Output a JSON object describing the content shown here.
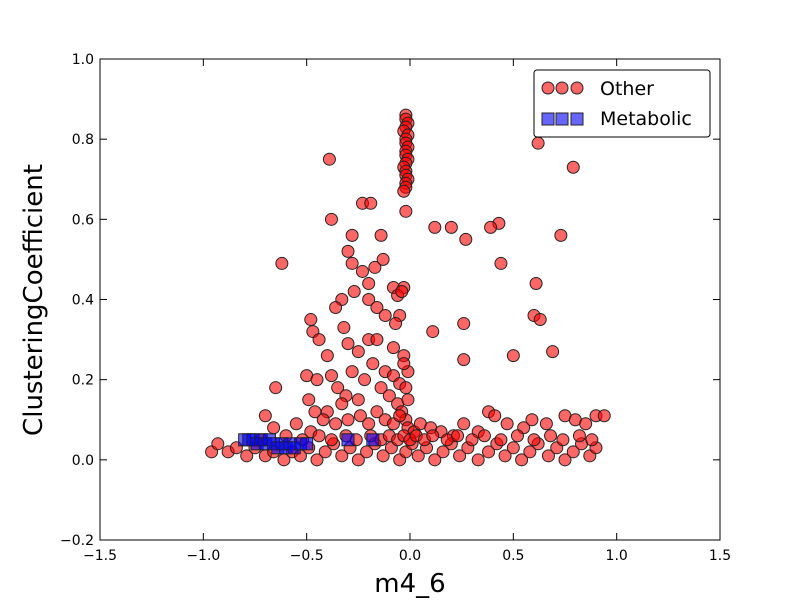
{
  "chart_data": {
    "type": "scatter",
    "xlabel": "m4_6",
    "ylabel": "ClusteringCoefficient",
    "xlim": [
      -1.5,
      1.5
    ],
    "ylim": [
      -0.2,
      1.0
    ],
    "xticks": [
      "−1.5",
      "−1.0",
      "−0.5",
      "0.0",
      "0.5",
      "1.0",
      "1.5"
    ],
    "yticks": [
      "−0.2",
      "0.0",
      "0.2",
      "0.4",
      "0.6",
      "0.8",
      "1.0"
    ],
    "grid": false,
    "legend_position": "top-right",
    "series": [
      {
        "name": "Other",
        "marker": "circle",
        "color": "#ff0000",
        "points": [
          [
            -0.02,
            0.86
          ],
          [
            -0.02,
            0.85
          ],
          [
            -0.01,
            0.84
          ],
          [
            -0.02,
            0.83
          ],
          [
            -0.03,
            0.82
          ],
          [
            -0.01,
            0.81
          ],
          [
            -0.02,
            0.8
          ],
          [
            -0.02,
            0.79
          ],
          [
            -0.01,
            0.78
          ],
          [
            -0.02,
            0.77
          ],
          [
            -0.02,
            0.76
          ],
          [
            -0.01,
            0.75
          ],
          [
            -0.02,
            0.74
          ],
          [
            -0.03,
            0.73
          ],
          [
            -0.02,
            0.72
          ],
          [
            -0.02,
            0.71
          ],
          [
            -0.01,
            0.7
          ],
          [
            -0.02,
            0.69
          ],
          [
            -0.02,
            0.68
          ],
          [
            -0.03,
            0.67
          ],
          [
            -0.02,
            0.62
          ],
          [
            -0.39,
            0.75
          ],
          [
            0.62,
            0.79
          ],
          [
            0.79,
            0.73
          ],
          [
            -0.38,
            0.6
          ],
          [
            -0.23,
            0.64
          ],
          [
            -0.19,
            0.64
          ],
          [
            -0.28,
            0.56
          ],
          [
            -0.14,
            0.56
          ],
          [
            0.12,
            0.58
          ],
          [
            0.2,
            0.58
          ],
          [
            0.27,
            0.55
          ],
          [
            0.43,
            0.59
          ],
          [
            0.39,
            0.58
          ],
          [
            0.73,
            0.56
          ],
          [
            -0.62,
            0.49
          ],
          [
            -0.3,
            0.52
          ],
          [
            -0.28,
            0.49
          ],
          [
            -0.23,
            0.47
          ],
          [
            -0.17,
            0.48
          ],
          [
            -0.13,
            0.5
          ],
          [
            0.44,
            0.49
          ],
          [
            0.61,
            0.44
          ],
          [
            -0.2,
            0.44
          ],
          [
            -0.08,
            0.43
          ],
          [
            -0.03,
            0.43
          ],
          [
            -0.06,
            0.41
          ],
          [
            -0.04,
            0.42
          ],
          [
            -0.27,
            0.42
          ],
          [
            -0.33,
            0.4
          ],
          [
            -0.2,
            0.4
          ],
          [
            -0.16,
            0.38
          ],
          [
            -0.36,
            0.38
          ],
          [
            -0.12,
            0.36
          ],
          [
            -0.05,
            0.36
          ],
          [
            -0.07,
            0.34
          ],
          [
            0.6,
            0.36
          ],
          [
            0.63,
            0.35
          ],
          [
            0.26,
            0.34
          ],
          [
            0.11,
            0.32
          ],
          [
            -0.48,
            0.35
          ],
          [
            -0.47,
            0.32
          ],
          [
            -0.32,
            0.33
          ],
          [
            -0.3,
            0.29
          ],
          [
            -0.2,
            0.3
          ],
          [
            -0.25,
            0.27
          ],
          [
            -0.44,
            0.3
          ],
          [
            -0.4,
            0.26
          ],
          [
            0.26,
            0.25
          ],
          [
            0.5,
            0.26
          ],
          [
            0.69,
            0.27
          ],
          [
            -0.16,
            0.3
          ],
          [
            -0.08,
            0.28
          ],
          [
            -0.03,
            0.26
          ],
          [
            -0.65,
            0.18
          ],
          [
            -0.5,
            0.21
          ],
          [
            -0.45,
            0.2
          ],
          [
            -0.38,
            0.21
          ],
          [
            -0.35,
            0.18
          ],
          [
            -0.31,
            0.16
          ],
          [
            -0.28,
            0.22
          ],
          [
            -0.22,
            0.2
          ],
          [
            -0.18,
            0.24
          ],
          [
            -0.12,
            0.22
          ],
          [
            -0.08,
            0.21
          ],
          [
            -0.05,
            0.19
          ],
          [
            -0.02,
            0.18
          ],
          [
            -0.01,
            0.22
          ],
          [
            -0.03,
            0.24
          ],
          [
            -0.14,
            0.18
          ],
          [
            -0.25,
            0.15
          ],
          [
            -0.33,
            0.14
          ],
          [
            -0.4,
            0.12
          ],
          [
            -0.49,
            0.15
          ],
          [
            -0.46,
            0.12
          ],
          [
            -0.1,
            0.16
          ],
          [
            -0.06,
            0.14
          ],
          [
            -0.01,
            0.15
          ],
          [
            -0.04,
            0.12
          ],
          [
            -0.02,
            0.1
          ],
          [
            -0.7,
            0.11
          ],
          [
            -0.66,
            0.08
          ],
          [
            -0.55,
            0.09
          ],
          [
            -0.48,
            0.07
          ],
          [
            -0.42,
            0.1
          ],
          [
            -0.36,
            0.09
          ],
          [
            -0.3,
            0.1
          ],
          [
            -0.24,
            0.11
          ],
          [
            -0.2,
            0.09
          ],
          [
            -0.16,
            0.12
          ],
          [
            -0.12,
            0.1
          ],
          [
            -0.08,
            0.09
          ],
          [
            -0.05,
            0.11
          ],
          [
            -0.01,
            0.08
          ],
          [
            0.02,
            0.07
          ],
          [
            0.05,
            0.09
          ],
          [
            0.1,
            0.08
          ],
          [
            0.15,
            0.07
          ],
          [
            0.21,
            0.06
          ],
          [
            0.26,
            0.09
          ],
          [
            0.33,
            0.07
          ],
          [
            0.38,
            0.12
          ],
          [
            0.41,
            0.11
          ],
          [
            0.47,
            0.09
          ],
          [
            0.55,
            0.08
          ],
          [
            0.59,
            0.1
          ],
          [
            0.66,
            0.09
          ],
          [
            0.75,
            0.11
          ],
          [
            0.8,
            0.1
          ],
          [
            0.85,
            0.09
          ],
          [
            0.9,
            0.11
          ],
          [
            0.94,
            0.11
          ],
          [
            -0.96,
            0.02
          ],
          [
            -0.93,
            0.04
          ],
          [
            -0.88,
            0.02
          ],
          [
            -0.84,
            0.03
          ],
          [
            -0.79,
            0.01
          ],
          [
            -0.75,
            0.03
          ],
          [
            -0.7,
            0.01
          ],
          [
            -0.66,
            0.02
          ],
          [
            -0.61,
            0.0
          ],
          [
            -0.57,
            0.02
          ],
          [
            -0.53,
            0.01
          ],
          [
            -0.49,
            0.03
          ],
          [
            -0.45,
            0.0
          ],
          [
            -0.41,
            0.02
          ],
          [
            -0.37,
            0.04
          ],
          [
            -0.33,
            0.01
          ],
          [
            -0.29,
            0.03
          ],
          [
            -0.25,
            0.0
          ],
          [
            -0.21,
            0.02
          ],
          [
            -0.17,
            0.04
          ],
          [
            -0.13,
            0.01
          ],
          [
            -0.09,
            0.03
          ],
          [
            -0.05,
            0.0
          ],
          [
            -0.02,
            0.02
          ],
          [
            0.01,
            0.04
          ],
          [
            0.04,
            0.01
          ],
          [
            0.08,
            0.03
          ],
          [
            0.12,
            0.0
          ],
          [
            0.16,
            0.02
          ],
          [
            0.2,
            0.04
          ],
          [
            0.24,
            0.01
          ],
          [
            0.28,
            0.03
          ],
          [
            0.33,
            0.0
          ],
          [
            0.38,
            0.02
          ],
          [
            0.42,
            0.04
          ],
          [
            0.46,
            0.01
          ],
          [
            0.5,
            0.03
          ],
          [
            0.54,
            0.0
          ],
          [
            0.58,
            0.02
          ],
          [
            0.62,
            0.04
          ],
          [
            0.67,
            0.01
          ],
          [
            0.71,
            0.03
          ],
          [
            0.75,
            0.0
          ],
          [
            0.79,
            0.02
          ],
          [
            0.83,
            0.04
          ],
          [
            0.87,
            0.01
          ],
          [
            0.9,
            0.03
          ],
          [
            -0.72,
            0.05
          ],
          [
            -0.6,
            0.06
          ],
          [
            -0.52,
            0.05
          ],
          [
            -0.44,
            0.06
          ],
          [
            -0.38,
            0.05
          ],
          [
            -0.31,
            0.06
          ],
          [
            -0.26,
            0.05
          ],
          [
            -0.19,
            0.06
          ],
          [
            -0.14,
            0.05
          ],
          [
            -0.1,
            0.06
          ],
          [
            -0.06,
            0.05
          ],
          [
            -0.03,
            0.06
          ],
          [
            0.0,
            0.05
          ],
          [
            0.03,
            0.06
          ],
          [
            0.07,
            0.05
          ],
          [
            0.11,
            0.06
          ],
          [
            0.18,
            0.05
          ],
          [
            0.23,
            0.06
          ],
          [
            0.3,
            0.05
          ],
          [
            0.36,
            0.06
          ],
          [
            0.44,
            0.05
          ],
          [
            0.52,
            0.06
          ],
          [
            0.6,
            0.05
          ],
          [
            0.68,
            0.06
          ],
          [
            0.74,
            0.05
          ],
          [
            0.82,
            0.06
          ],
          [
            0.88,
            0.05
          ]
        ]
      },
      {
        "name": "Metabolic",
        "marker": "square",
        "color": "#0000ff",
        "points": [
          [
            -0.8,
            0.05
          ],
          [
            -0.78,
            0.05
          ],
          [
            -0.76,
            0.05
          ],
          [
            -0.74,
            0.04
          ],
          [
            -0.72,
            0.05
          ],
          [
            -0.7,
            0.04
          ],
          [
            -0.68,
            0.05
          ],
          [
            -0.66,
            0.04
          ],
          [
            -0.64,
            0.03
          ],
          [
            -0.62,
            0.04
          ],
          [
            -0.6,
            0.03
          ],
          [
            -0.58,
            0.04
          ],
          [
            -0.56,
            0.03
          ],
          [
            -0.53,
            0.04
          ],
          [
            -0.5,
            0.04
          ],
          [
            -0.3,
            0.05
          ],
          [
            -0.18,
            0.05
          ]
        ]
      }
    ]
  }
}
